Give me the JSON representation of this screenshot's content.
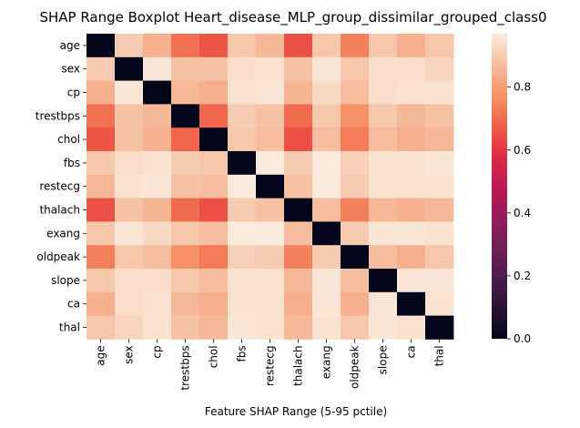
{
  "chart_data": {
    "type": "heatmap",
    "title": "SHAP Range Boxplot Heart_disease_MLP_group_dissimilar_grouped_class0",
    "xlabel": "Feature SHAP Range (5-95 pctile)",
    "ylabel": "",
    "rows": [
      "age",
      "sex",
      "cp",
      "trestbps",
      "chol",
      "fbs",
      "restecg",
      "thalach",
      "exang",
      "oldpeak",
      "slope",
      "ca",
      "thal"
    ],
    "cols": [
      "age",
      "sex",
      "cp",
      "trestbps",
      "chol",
      "fbs",
      "restecg",
      "thalach",
      "exang",
      "oldpeak",
      "slope",
      "ca",
      "thal"
    ],
    "values": [
      [
        0.0,
        0.9,
        0.84,
        0.71,
        0.66,
        0.89,
        0.86,
        0.65,
        0.89,
        0.74,
        0.89,
        0.84,
        0.89
      ],
      [
        0.9,
        0.0,
        0.96,
        0.88,
        0.88,
        0.94,
        0.95,
        0.88,
        0.96,
        0.89,
        0.94,
        0.94,
        0.92
      ],
      [
        0.84,
        0.96,
        0.0,
        0.86,
        0.84,
        0.95,
        0.96,
        0.85,
        0.93,
        0.87,
        0.94,
        0.95,
        0.95
      ],
      [
        0.71,
        0.88,
        0.86,
        0.0,
        0.69,
        0.9,
        0.88,
        0.7,
        0.89,
        0.77,
        0.89,
        0.86,
        0.88
      ],
      [
        0.66,
        0.88,
        0.84,
        0.69,
        0.0,
        0.89,
        0.87,
        0.65,
        0.87,
        0.73,
        0.87,
        0.84,
        0.86
      ],
      [
        0.89,
        0.94,
        0.95,
        0.9,
        0.89,
        0.0,
        0.97,
        0.9,
        0.97,
        0.91,
        0.95,
        0.95,
        0.96
      ],
      [
        0.86,
        0.95,
        0.96,
        0.88,
        0.87,
        0.97,
        0.0,
        0.88,
        0.97,
        0.9,
        0.95,
        0.95,
        0.95
      ],
      [
        0.65,
        0.88,
        0.85,
        0.7,
        0.65,
        0.9,
        0.88,
        0.0,
        0.87,
        0.74,
        0.86,
        0.84,
        0.86
      ],
      [
        0.89,
        0.96,
        0.93,
        0.89,
        0.87,
        0.97,
        0.97,
        0.87,
        0.0,
        0.9,
        0.96,
        0.96,
        0.95
      ],
      [
        0.74,
        0.89,
        0.87,
        0.77,
        0.73,
        0.91,
        0.9,
        0.74,
        0.9,
        0.0,
        0.87,
        0.84,
        0.89
      ],
      [
        0.89,
        0.94,
        0.94,
        0.89,
        0.87,
        0.95,
        0.95,
        0.86,
        0.96,
        0.87,
        0.0,
        0.96,
        0.96
      ],
      [
        0.84,
        0.94,
        0.95,
        0.86,
        0.84,
        0.95,
        0.95,
        0.84,
        0.96,
        0.84,
        0.96,
        0.0,
        0.95
      ],
      [
        0.89,
        0.92,
        0.95,
        0.88,
        0.86,
        0.96,
        0.95,
        0.86,
        0.95,
        0.89,
        0.96,
        0.95,
        0.0
      ]
    ],
    "colorbar": {
      "ticks": [
        0.0,
        0.2,
        0.4,
        0.6,
        0.8
      ],
      "tick_labels": [
        "0.0",
        "0.2",
        "0.4",
        "0.6",
        "0.8"
      ],
      "range": [
        0,
        0.97
      ],
      "colormap": "rocket"
    },
    "grid": false
  }
}
